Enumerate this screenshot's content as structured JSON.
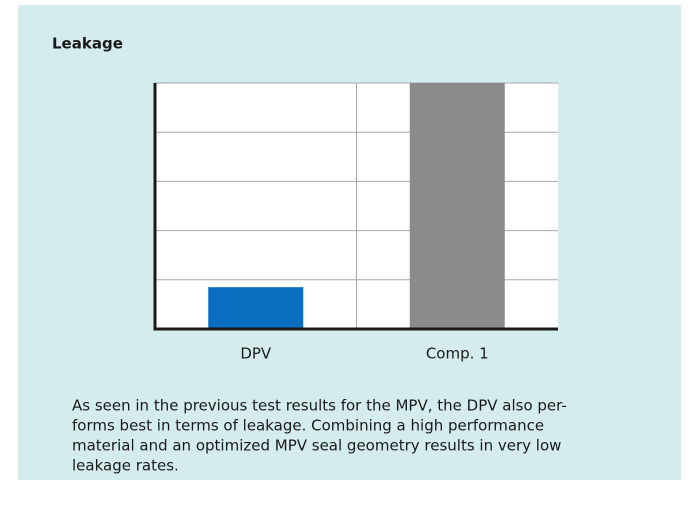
{
  "chart_data": {
    "type": "bar",
    "title": "Leakage",
    "categories": [
      "DPV",
      "Comp. 1"
    ],
    "values": [
      0.85,
      5
    ],
    "colors": [
      "#0a6fc0",
      "#898b8c"
    ],
    "ylim": [
      0,
      5
    ],
    "yticks": [
      0,
      1,
      2,
      3,
      4,
      5
    ],
    "grid": true,
    "caption": [
      "As seen in the previous test results for the MPV, the DPV also per-",
      "forms best in terms of leakage. Combining a high performance",
      "material and an optimized MPV seal geometry results in very low",
      "leakage rates."
    ]
  }
}
